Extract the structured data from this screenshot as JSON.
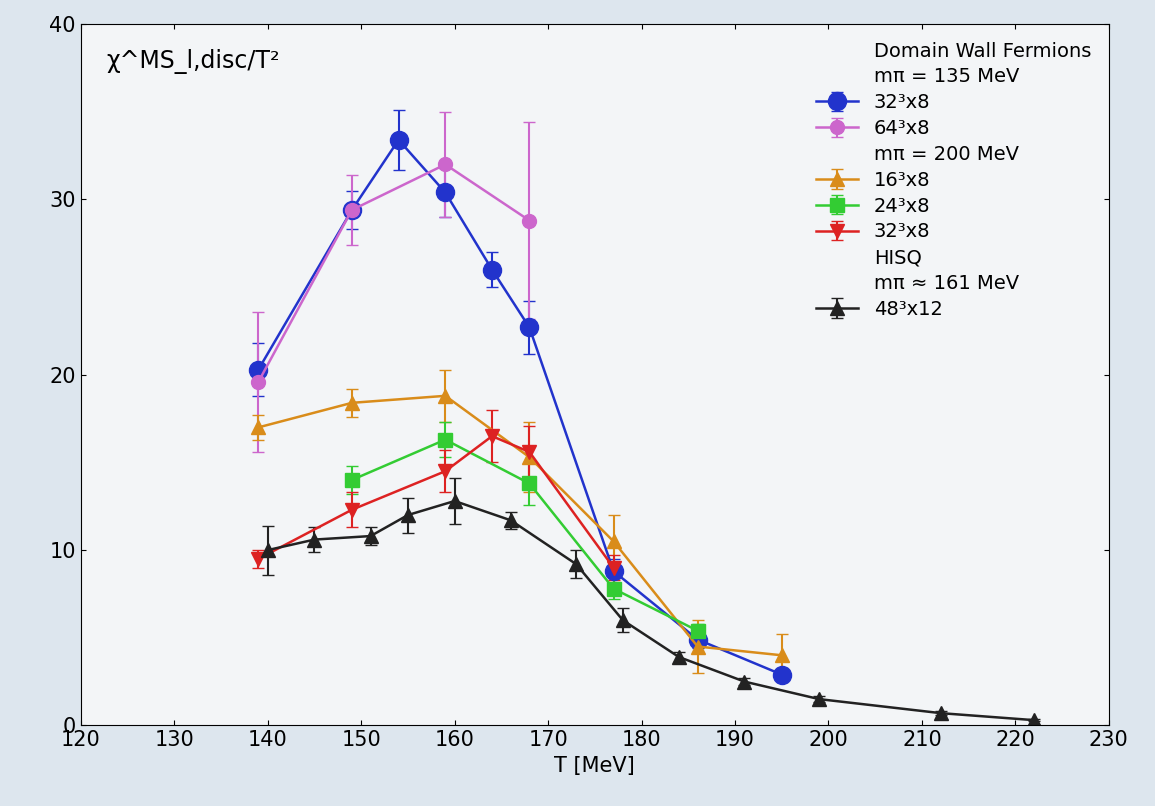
{
  "chart_data": {
    "type": "line",
    "y_label": "χ^MS_l,disc/T²",
    "x_label": "T [MeV]",
    "xlim": [
      120,
      230
    ],
    "xticks": [
      120,
      130,
      140,
      150,
      160,
      170,
      180,
      190,
      200,
      210,
      220,
      230
    ],
    "ylim": [
      0,
      40
    ],
    "yticks": [
      0,
      10,
      20,
      30,
      40
    ],
    "grid": false,
    "legend": "upper right",
    "series": [
      {
        "name": "32³x8",
        "headers": [
          "Domain Wall Fermions",
          "mπ = 135 MeV"
        ],
        "color": "#2233cc",
        "marker": "o",
        "x": [
          139,
          149,
          154,
          159,
          164,
          168,
          177,
          186,
          195
        ],
        "values": [
          20.3,
          29.4,
          33.4,
          30.4,
          26.0,
          22.7,
          8.8,
          4.9,
          2.9
        ],
        "errors": [
          1.5,
          1.1,
          1.7,
          1.4,
          1.0,
          1.5,
          0.7,
          0.5,
          0.3
        ]
      },
      {
        "name": "64³x8",
        "headers": [],
        "color": "#cc66cc",
        "marker": "o",
        "x": [
          139,
          149,
          159,
          168
        ],
        "values": [
          19.6,
          29.4,
          32.0,
          28.8
        ],
        "errors": [
          4.0,
          2.0,
          3.0,
          5.6
        ]
      },
      {
        "name": "16³x8",
        "headers": [
          "mπ = 200 MeV"
        ],
        "color": "#d98c1a",
        "marker": "^",
        "x": [
          139,
          149,
          159,
          168,
          177,
          186,
          195
        ],
        "values": [
          17.0,
          18.4,
          18.8,
          15.3,
          10.5,
          4.5,
          4.0
        ],
        "errors": [
          0.7,
          0.8,
          1.5,
          2.0,
          1.5,
          1.5,
          1.2
        ]
      },
      {
        "name": "24³x8",
        "headers": [],
        "color": "#33cc33",
        "marker": "s",
        "x": [
          149,
          159,
          168,
          177,
          186
        ],
        "values": [
          14.0,
          16.3,
          13.8,
          7.8,
          5.4
        ],
        "errors": [
          0.8,
          1.0,
          1.2,
          0.6,
          0.4
        ]
      },
      {
        "name": "32³x8",
        "headers": [],
        "color": "#dd2222",
        "marker": "v",
        "x": [
          139,
          149,
          159,
          164,
          168,
          177
        ],
        "values": [
          9.5,
          12.3,
          14.5,
          16.5,
          15.6,
          9.0
        ],
        "errors": [
          0.5,
          1.0,
          1.2,
          1.5,
          1.5,
          0.7
        ]
      },
      {
        "name": "48³x12",
        "headers": [
          "HISQ",
          "mπ ≈ 161 MeV"
        ],
        "color": "#222222",
        "marker": "^",
        "x": [
          140,
          145,
          151,
          155,
          160,
          166,
          173,
          178,
          184,
          191,
          199,
          212,
          222
        ],
        "values": [
          10.0,
          10.6,
          10.8,
          12.0,
          12.8,
          11.7,
          9.2,
          6.0,
          3.9,
          2.5,
          1.5,
          0.7,
          0.3
        ],
        "errors": [
          1.4,
          0.7,
          0.5,
          1.0,
          1.3,
          0.5,
          0.8,
          0.7,
          0.3,
          0.2,
          0.15,
          0.1,
          0.05
        ]
      }
    ]
  }
}
